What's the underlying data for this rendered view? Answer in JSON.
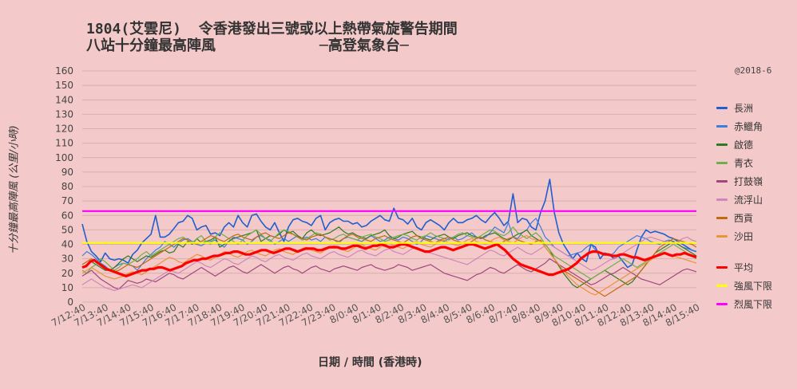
{
  "title_line1": "1804(艾雲尼)  令香港發出三號或以上熱帶氣旋警告期間",
  "title_line2": "八站十分鐘最高陣風            ─高登氣象台─",
  "watermark": "@2018-6",
  "chart_data": {
    "type": "line",
    "xlabel": "日期 / 時間 (香港時)",
    "ylabel": "十分鐘最高陣風 (公里/小時)",
    "ylim": [
      0,
      160
    ],
    "yticks": [
      0,
      10,
      20,
      30,
      40,
      50,
      60,
      70,
      80,
      90,
      100,
      110,
      120,
      130,
      140,
      150,
      160
    ],
    "x_ticks": [
      "7/12:40",
      "7/13:40",
      "7/14:40",
      "7/15:40",
      "7/16:40",
      "7/17:40",
      "7/18:40",
      "7/19:40",
      "7/20:40",
      "7/21:40",
      "7/22:40",
      "7/23:40",
      "8/0:40",
      "8/1:40",
      "8/2:40",
      "8/3:40",
      "8/4:40",
      "8/5:40",
      "8/6:40",
      "8/7:40",
      "8/8:40",
      "8/9:40",
      "8/10:40",
      "8/11:40",
      "8/12:40",
      "8/13:40",
      "8/14:40",
      "8/15:40"
    ],
    "grid": true,
    "legend_position": "right",
    "series": [
      {
        "name": "長洲",
        "color": "#1f5fd0",
        "width": 1.6,
        "values": [
          54,
          42,
          35,
          32,
          28,
          34,
          30,
          29,
          30,
          29,
          27,
          33,
          36,
          41,
          44,
          47,
          60,
          45,
          45,
          47,
          51,
          55,
          56,
          60,
          58,
          50,
          52,
          53,
          47,
          48,
          46,
          52,
          55,
          52,
          60,
          55,
          52,
          60,
          61,
          56,
          52,
          50,
          55,
          48,
          42,
          52,
          57,
          58,
          56,
          55,
          53,
          58,
          60,
          50,
          55,
          57,
          58,
          56,
          56,
          54,
          55,
          52,
          53,
          56,
          58,
          60,
          57,
          56,
          65,
          58,
          57,
          54,
          58,
          52,
          50,
          55,
          57,
          55,
          53,
          50,
          55,
          58,
          55,
          55,
          57,
          58,
          60,
          57,
          55,
          59,
          62,
          58,
          53,
          56,
          75,
          55,
          58,
          57,
          52,
          50,
          62,
          70,
          85,
          62,
          48,
          40,
          35,
          30,
          34,
          30,
          28,
          40,
          38,
          30,
          34,
          33,
          30,
          32,
          28,
          24,
          26,
          36,
          45,
          50,
          48,
          49,
          48,
          47,
          45,
          44,
          42,
          40,
          38,
          36,
          35
        ]
      },
      {
        "name": "赤鱲角",
        "color": "#3a7ee0",
        "width": 1.2,
        "values": [
          32,
          35,
          33,
          30,
          27,
          25,
          22,
          24,
          26,
          27,
          26,
          25,
          22,
          26,
          30,
          33,
          36,
          38,
          42,
          40,
          38,
          41,
          43,
          44,
          42,
          40,
          39,
          41,
          42,
          43,
          40,
          38,
          42,
          45,
          44,
          43,
          40,
          42,
          45,
          46,
          44,
          43,
          40,
          42,
          44,
          42,
          44,
          46,
          44,
          45,
          43,
          44,
          42,
          45,
          44,
          43,
          41,
          44,
          45,
          44,
          43,
          42,
          44,
          46,
          44,
          42,
          43,
          45,
          44,
          43,
          45,
          44,
          42,
          40,
          42,
          46,
          45,
          44,
          43,
          42,
          44,
          45,
          43,
          44,
          46,
          48,
          45,
          44,
          45,
          48,
          52,
          50,
          48,
          55,
          45,
          44,
          48,
          50,
          55,
          58,
          52,
          45,
          42,
          38,
          36,
          34,
          32,
          33,
          34,
          35,
          38,
          40,
          36,
          34,
          33,
          32,
          34,
          38,
          40,
          42,
          44,
          46,
          45,
          44,
          42,
          41,
          40,
          42,
          43,
          42,
          40,
          38,
          37,
          36,
          35
        ]
      },
      {
        "name": "啟德",
        "color": "#2e7a22",
        "width": 1.2,
        "values": [
          24,
          26,
          28,
          26,
          24,
          22,
          22,
          24,
          27,
          30,
          32,
          30,
          28,
          30,
          32,
          31,
          33,
          35,
          36,
          34,
          35,
          40,
          38,
          42,
          40,
          44,
          41,
          42,
          43,
          45,
          38,
          40,
          42,
          44,
          45,
          46,
          47,
          48,
          50,
          42,
          44,
          46,
          45,
          47,
          50,
          48,
          49,
          46,
          44,
          48,
          50,
          47,
          46,
          47,
          48,
          50,
          52,
          49,
          47,
          48,
          46,
          45,
          44,
          46,
          47,
          48,
          50,
          46,
          44,
          45,
          47,
          48,
          49,
          46,
          45,
          44,
          43,
          45,
          46,
          47,
          45,
          44,
          46,
          47,
          48,
          46,
          45,
          44,
          46,
          47,
          48,
          46,
          44,
          43,
          45,
          47,
          48,
          50,
          46,
          44,
          42,
          40,
          36,
          30,
          25,
          20,
          16,
          12,
          10,
          12,
          14,
          16,
          18,
          20,
          22,
          20,
          18,
          16,
          14,
          12,
          14,
          18,
          22,
          26,
          30,
          34,
          36,
          38,
          40,
          42,
          40,
          38,
          36,
          34,
          32
        ]
      },
      {
        "name": "青衣",
        "color": "#6ab04c",
        "width": 1.2,
        "values": [
          22,
          20,
          24,
          26,
          30,
          28,
          25,
          22,
          24,
          27,
          26,
          28,
          30,
          33,
          35,
          32,
          34,
          36,
          38,
          40,
          42,
          44,
          45,
          43,
          41,
          44,
          46,
          42,
          40,
          45,
          48,
          46,
          44,
          42,
          40,
          43,
          46,
          48,
          50,
          47,
          44,
          42,
          45,
          48,
          50,
          49,
          47,
          45,
          43,
          44,
          46,
          48,
          47,
          45,
          43,
          44,
          46,
          47,
          45,
          44,
          43,
          45,
          46,
          47,
          45,
          44,
          42,
          43,
          45,
          46,
          47,
          46,
          44,
          43,
          45,
          46,
          48,
          46,
          45,
          44,
          43,
          45,
          47,
          48,
          46,
          45,
          44,
          46,
          48,
          50,
          49,
          47,
          46,
          48,
          52,
          48,
          46,
          44,
          46,
          48,
          45,
          40,
          36,
          32,
          30,
          28,
          26,
          24,
          22,
          20,
          18,
          16,
          18,
          20,
          22,
          24,
          26,
          28,
          30,
          28,
          26,
          24,
          26,
          28,
          30,
          32,
          34,
          36,
          38,
          40,
          38,
          36,
          34,
          32,
          30
        ]
      },
      {
        "name": "打鼓嶺",
        "color": "#a0477e",
        "width": 1.2,
        "values": [
          18,
          20,
          22,
          19,
          16,
          14,
          12,
          10,
          9,
          12,
          15,
          14,
          13,
          14,
          16,
          15,
          14,
          16,
          18,
          20,
          19,
          17,
          16,
          18,
          20,
          22,
          24,
          22,
          20,
          18,
          20,
          22,
          24,
          25,
          23,
          21,
          20,
          22,
          24,
          26,
          24,
          22,
          20,
          22,
          24,
          25,
          23,
          22,
          20,
          22,
          24,
          25,
          23,
          22,
          21,
          23,
          24,
          25,
          24,
          23,
          22,
          24,
          25,
          26,
          24,
          23,
          22,
          23,
          24,
          26,
          25,
          24,
          22,
          23,
          24,
          25,
          26,
          24,
          22,
          20,
          19,
          18,
          17,
          16,
          15,
          17,
          19,
          20,
          22,
          24,
          23,
          21,
          20,
          22,
          24,
          26,
          24,
          22,
          21,
          23,
          25,
          27,
          30,
          28,
          26,
          24,
          22,
          20,
          18,
          16,
          14,
          12,
          13,
          15,
          17,
          19,
          20,
          22,
          24,
          22,
          20,
          18,
          16,
          15,
          14,
          13,
          12,
          14,
          16,
          18,
          20,
          22,
          23,
          22,
          21
        ]
      },
      {
        "name": "流浮山",
        "color": "#cc88bb",
        "width": 1.2,
        "values": [
          12,
          14,
          16,
          14,
          12,
          10,
          9,
          8,
          9,
          10,
          11,
          12,
          11,
          10,
          12,
          14,
          16,
          18,
          20,
          22,
          21,
          20,
          22,
          24,
          26,
          28,
          27,
          25,
          24,
          26,
          28,
          30,
          29,
          27,
          26,
          28,
          30,
          32,
          31,
          29,
          28,
          30,
          32,
          33,
          31,
          30,
          29,
          31,
          33,
          34,
          32,
          31,
          30,
          32,
          34,
          35,
          33,
          32,
          31,
          33,
          35,
          36,
          34,
          33,
          32,
          34,
          36,
          37,
          35,
          34,
          33,
          35,
          37,
          38,
          36,
          35,
          34,
          33,
          32,
          31,
          30,
          29,
          28,
          27,
          26,
          28,
          30,
          32,
          34,
          36,
          35,
          33,
          32,
          34,
          36,
          38,
          36,
          34,
          33,
          35,
          37,
          39,
          40,
          38,
          36,
          34,
          32,
          30,
          28,
          26,
          24,
          22,
          23,
          25,
          27,
          29,
          30,
          32,
          34,
          36,
          38,
          40,
          42,
          44,
          45,
          44,
          43,
          42,
          41,
          40,
          42,
          44,
          45,
          43,
          42
        ]
      },
      {
        "name": "西貢",
        "color": "#c06a10",
        "width": 1.2,
        "values": [
          26,
          28,
          30,
          28,
          26,
          24,
          22,
          21,
          22,
          24,
          26,
          25,
          24,
          26,
          28,
          30,
          32,
          34,
          36,
          38,
          40,
          42,
          44,
          43,
          41,
          40,
          42,
          44,
          46,
          45,
          43,
          42,
          44,
          46,
          47,
          45,
          44,
          43,
          45,
          47,
          48,
          46,
          45,
          44,
          46,
          48,
          47,
          45,
          44,
          43,
          45,
          46,
          47,
          45,
          44,
          43,
          42,
          44,
          46,
          47,
          45,
          44,
          43,
          42,
          44,
          45,
          46,
          44,
          43,
          42,
          41,
          43,
          45,
          46,
          44,
          43,
          42,
          41,
          43,
          44,
          45,
          43,
          42,
          41,
          40,
          42,
          44,
          45,
          43,
          42,
          41,
          40,
          42,
          44,
          45,
          43,
          42,
          41,
          40,
          42,
          43,
          38,
          34,
          30,
          26,
          22,
          20,
          18,
          16,
          14,
          12,
          10,
          8,
          6,
          4,
          6,
          8,
          10,
          12,
          14,
          16,
          18,
          22,
          26,
          30,
          34,
          38,
          40,
          42,
          44,
          43,
          42,
          41,
          40,
          38
        ]
      },
      {
        "name": "沙田",
        "color": "#e8943a",
        "width": 1.2,
        "values": [
          20,
          22,
          24,
          22,
          20,
          18,
          17,
          16,
          17,
          18,
          20,
          21,
          20,
          19,
          21,
          23,
          25,
          27,
          29,
          31,
          30,
          28,
          27,
          29,
          31,
          33,
          32,
          30,
          29,
          31,
          33,
          35,
          34,
          32,
          31,
          33,
          35,
          36,
          34,
          33,
          32,
          34,
          36,
          37,
          35,
          34,
          33,
          35,
          37,
          38,
          36,
          35,
          34,
          36,
          38,
          39,
          37,
          36,
          35,
          37,
          39,
          40,
          38,
          37,
          36,
          38,
          40,
          41,
          39,
          38,
          37,
          39,
          41,
          42,
          40,
          39,
          38,
          40,
          42,
          43,
          41,
          40,
          39,
          41,
          43,
          44,
          42,
          41,
          40,
          42,
          44,
          45,
          43,
          42,
          41,
          43,
          45,
          46,
          44,
          43,
          42,
          38,
          34,
          30,
          26,
          22,
          18,
          15,
          12,
          10,
          8,
          6,
          5,
          7,
          9,
          11,
          13,
          15,
          17,
          19,
          21,
          23,
          25,
          27,
          29,
          31,
          33,
          34,
          33,
          32,
          31,
          30,
          29,
          28,
          27
        ]
      },
      {
        "name": "平均",
        "color": "#ff0000",
        "width": 3.2,
        "values": [
          24,
          25,
          28,
          29,
          27,
          25,
          23,
          22,
          21,
          20,
          19,
          18,
          19,
          20,
          21,
          22,
          22,
          23,
          23,
          24,
          24,
          23,
          22,
          23,
          24,
          25,
          27,
          28,
          29,
          29,
          30,
          30,
          31,
          32,
          32,
          33,
          34,
          34,
          35,
          35,
          34,
          33,
          33,
          34,
          35,
          36,
          36,
          35,
          34,
          35,
          36,
          37,
          37,
          36,
          35,
          36,
          37,
          37,
          37,
          36,
          36,
          37,
          38,
          38,
          38,
          37,
          37,
          38,
          39,
          39,
          38,
          37,
          38,
          39,
          39,
          40,
          39,
          38,
          38,
          39,
          40,
          40,
          39,
          38,
          37,
          36,
          35,
          35,
          36,
          37,
          38,
          38,
          37,
          36,
          37,
          38,
          39,
          40,
          40,
          39,
          38,
          37,
          38,
          39,
          40,
          38,
          36,
          33,
          30,
          28,
          26,
          25,
          24,
          23,
          22,
          21,
          20,
          19,
          19,
          20,
          21,
          22,
          23,
          25,
          27,
          30,
          32,
          34,
          35,
          35,
          34,
          33,
          33,
          32,
          32,
          33,
          33,
          32,
          31,
          31,
          30,
          29,
          30,
          31,
          32,
          33,
          34,
          33,
          32,
          33,
          33,
          34,
          33,
          32,
          31
        ]
      },
      {
        "name": "強風下限",
        "color": "#ffff00",
        "width": 2.2,
        "values": [
          41,
          41
        ]
      },
      {
        "name": "烈風下限",
        "color": "#ff00ff",
        "width": 2.2,
        "values": [
          63,
          63
        ]
      }
    ]
  }
}
